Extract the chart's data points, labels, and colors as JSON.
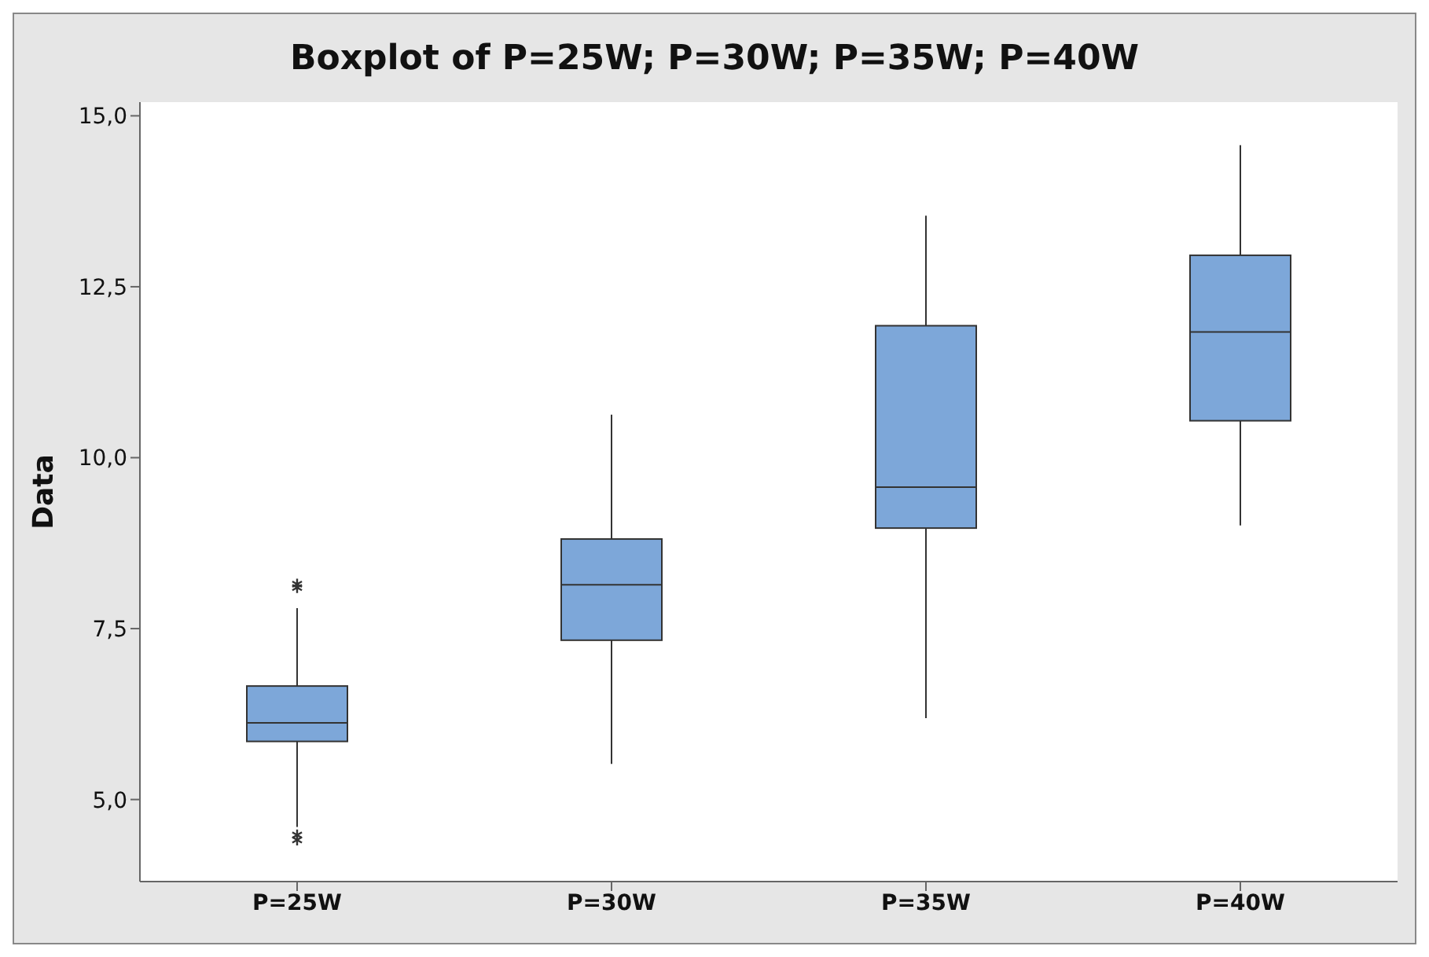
{
  "chart_data": {
    "type": "box",
    "title": "Boxplot of P=25W; P=30W; P=35W; P=40W",
    "ylabel": "Data",
    "categories": [
      "P=25W",
      "P=30W",
      "P=35W",
      "P=40W"
    ],
    "boxes": [
      {
        "low": 4.6,
        "q1": 5.85,
        "median": 6.12,
        "q3": 6.66,
        "high": 7.8,
        "outliers": [
          8.15,
          8.1,
          4.48,
          4.41
        ]
      },
      {
        "low": 5.52,
        "q1": 7.33,
        "median": 8.14,
        "q3": 8.81,
        "high": 10.63
      },
      {
        "low": 6.19,
        "q1": 8.97,
        "median": 9.57,
        "q3": 11.93,
        "high": 13.54
      },
      {
        "low": 9.01,
        "q1": 10.54,
        "median": 11.84,
        "q3": 12.96,
        "high": 14.57
      }
    ],
    "color": "#7da7d9",
    "marker": "star",
    "grid": false,
    "legend": false,
    "ylim": [
      3.8,
      15.2
    ],
    "yticks": [
      {
        "value": 5,
        "label": "5,0"
      },
      {
        "value": 7.5,
        "label": "7,5"
      },
      {
        "value": 10,
        "label": "10,0"
      },
      {
        "value": 12.5,
        "label": "12,5"
      },
      {
        "value": 15,
        "label": "15,0"
      }
    ]
  }
}
